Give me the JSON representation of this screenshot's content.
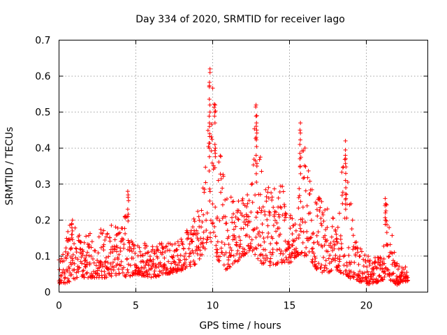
{
  "chart_data": {
    "type": "scatter",
    "title": "Day 334 of 2020, SRMTID for receiver Iago",
    "xlabel": "GPS time / hours",
    "ylabel": "SRMTID / TECUs",
    "xlim": [
      0,
      24
    ],
    "ylim": [
      0,
      0.7
    ],
    "x_ticks": [
      0,
      5,
      10,
      15,
      20
    ],
    "x_tick_labels": [
      "0",
      "5",
      "10",
      "15",
      "20"
    ],
    "y_ticks": [
      0,
      0.1,
      0.2,
      0.3,
      0.4,
      0.5,
      0.6,
      0.7
    ],
    "y_tick_labels": [
      "0",
      "0.1",
      "0.2",
      "0.3",
      "0.4",
      "0.5",
      "0.6",
      "0.7"
    ],
    "grid": true,
    "marker": "plus",
    "series": [
      {
        "name": "SRMTID",
        "color": "#ff0000",
        "envelope": {
          "x": [
            0.0,
            0.8,
            1.5,
            3.0,
            4.0,
            4.5,
            5.0,
            6.0,
            7.0,
            8.0,
            9.0,
            9.5,
            9.8,
            10.2,
            10.8,
            11.5,
            12.0,
            12.5,
            12.8,
            13.2,
            14.0,
            14.5,
            15.0,
            15.5,
            15.8,
            16.5,
            17.0,
            18.0,
            18.6,
            19.2,
            20.0,
            21.0,
            21.3,
            22.0,
            22.7
          ],
          "low": [
            0.02,
            0.03,
            0.04,
            0.04,
            0.05,
            0.04,
            0.05,
            0.04,
            0.05,
            0.06,
            0.08,
            0.12,
            0.15,
            0.1,
            0.06,
            0.08,
            0.1,
            0.12,
            0.1,
            0.08,
            0.07,
            0.08,
            0.08,
            0.1,
            0.1,
            0.08,
            0.05,
            0.06,
            0.05,
            0.03,
            0.02,
            0.03,
            0.04,
            0.02,
            0.03
          ],
          "high": [
            0.09,
            0.2,
            0.15,
            0.19,
            0.18,
            0.28,
            0.13,
            0.14,
            0.14,
            0.15,
            0.22,
            0.33,
            0.62,
            0.52,
            0.31,
            0.26,
            0.26,
            0.35,
            0.52,
            0.33,
            0.29,
            0.31,
            0.22,
            0.2,
            0.47,
            0.28,
            0.27,
            0.2,
            0.42,
            0.16,
            0.1,
            0.1,
            0.26,
            0.08,
            0.07
          ]
        },
        "spikes": [
          {
            "x": 0.85,
            "values": [
              0.2,
              0.19,
              0.17,
              0.16
            ]
          },
          {
            "x": 4.5,
            "values": [
              0.28,
              0.27,
              0.23,
              0.21
            ]
          },
          {
            "x": 9.8,
            "values": [
              0.62,
              0.61,
              0.57,
              0.52,
              0.5,
              0.46,
              0.44,
              0.4
            ]
          },
          {
            "x": 10.15,
            "values": [
              0.52,
              0.5,
              0.41,
              0.4
            ]
          },
          {
            "x": 12.85,
            "values": [
              0.52,
              0.49,
              0.47,
              0.45,
              0.43,
              0.38,
              0.35
            ]
          },
          {
            "x": 15.7,
            "values": [
              0.47,
              0.45,
              0.41,
              0.37,
              0.35
            ]
          },
          {
            "x": 18.65,
            "values": [
              0.42,
              0.38,
              0.37,
              0.33,
              0.29,
              0.26
            ]
          },
          {
            "x": 21.25,
            "values": [
              0.26,
              0.24,
              0.22,
              0.2
            ]
          }
        ]
      }
    ]
  }
}
